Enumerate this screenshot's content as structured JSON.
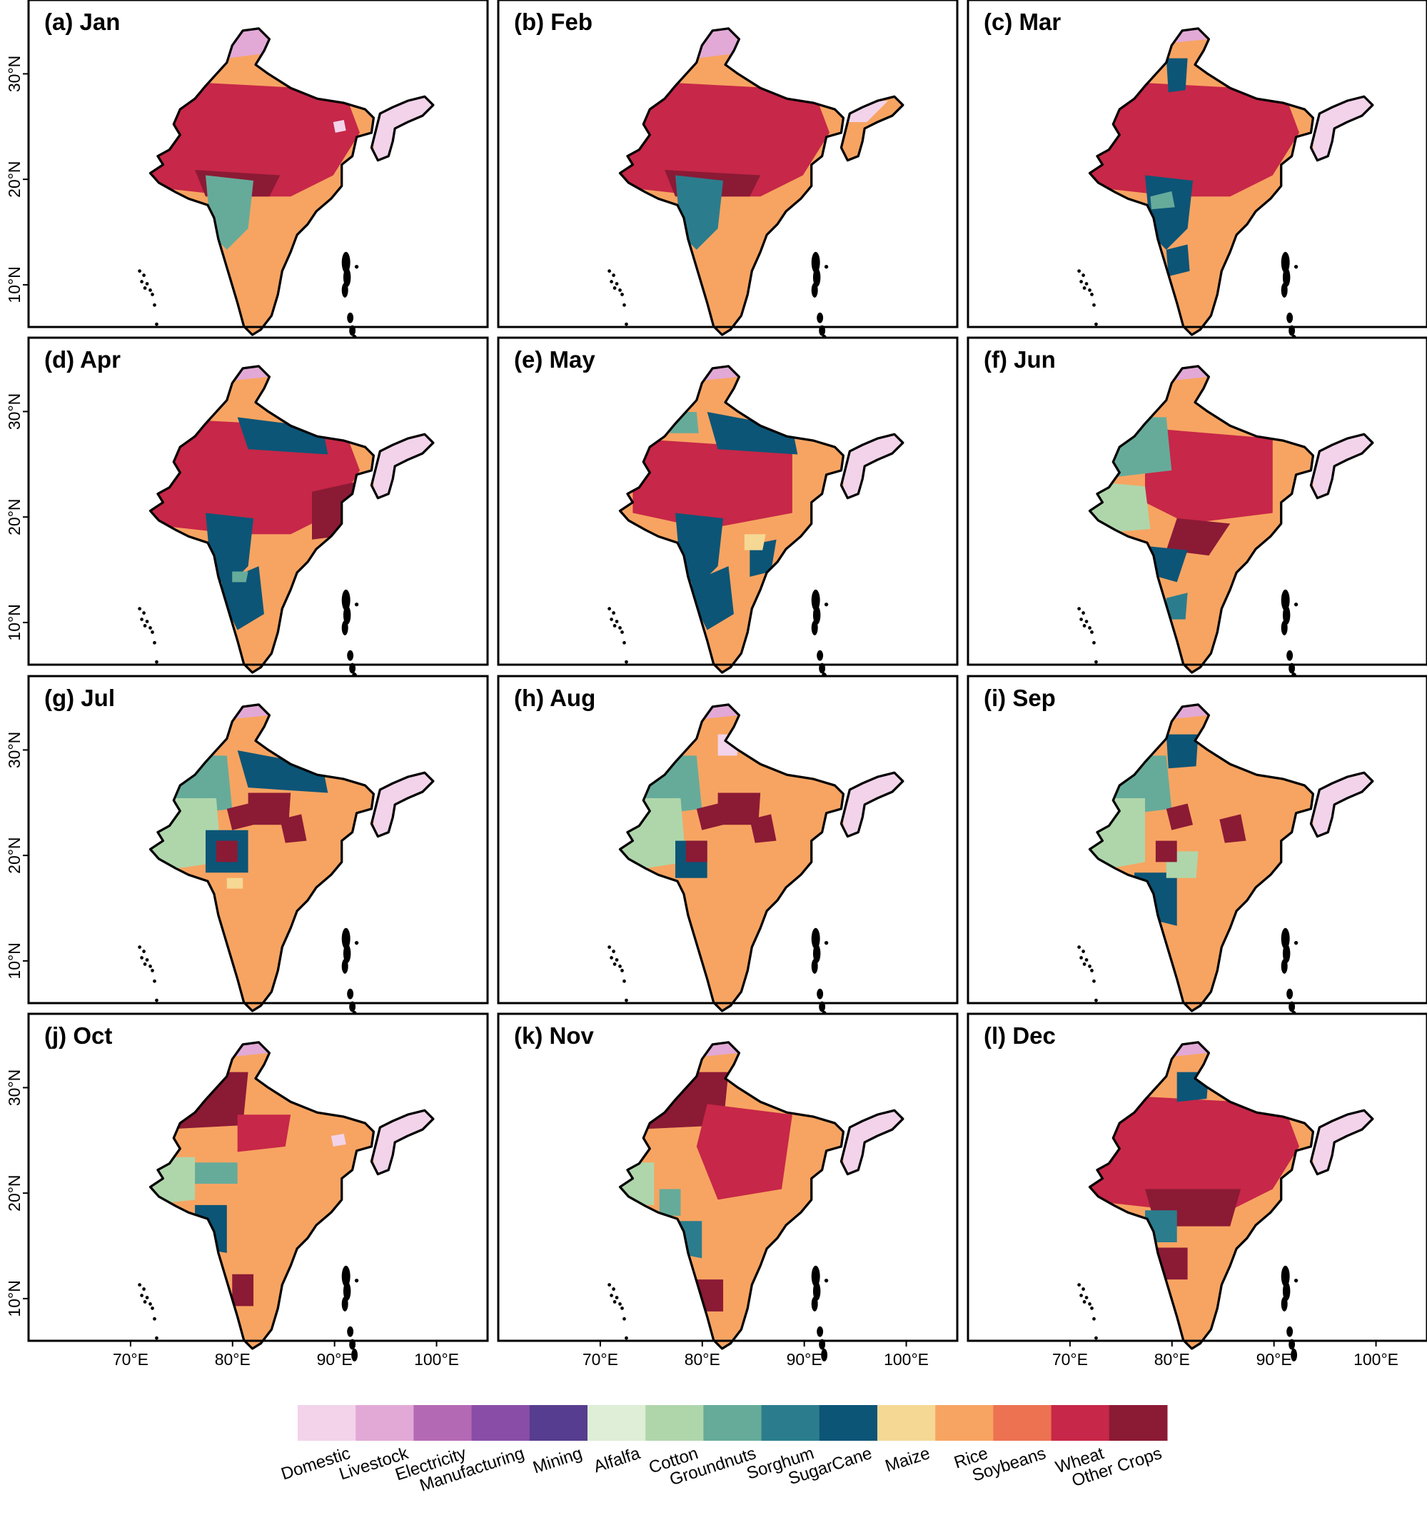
{
  "figure": {
    "panels": [
      {
        "id": "a",
        "label": "(a) Jan",
        "pattern": "jan"
      },
      {
        "id": "b",
        "label": "(b) Feb",
        "pattern": "feb"
      },
      {
        "id": "c",
        "label": "(c) Mar",
        "pattern": "mar"
      },
      {
        "id": "d",
        "label": "(d) Apr",
        "pattern": "apr"
      },
      {
        "id": "e",
        "label": "(e) May",
        "pattern": "may"
      },
      {
        "id": "f",
        "label": "(f) Jun",
        "pattern": "jun"
      },
      {
        "id": "g",
        "label": "(g) Jul",
        "pattern": "jul"
      },
      {
        "id": "h",
        "label": "(h) Aug",
        "pattern": "aug"
      },
      {
        "id": "i",
        "label": "(i) Sep",
        "pattern": "sep"
      },
      {
        "id": "j",
        "label": "(j) Oct",
        "pattern": "oct"
      },
      {
        "id": "k",
        "label": "(k) Nov",
        "pattern": "nov"
      },
      {
        "id": "l",
        "label": "(l) Dec",
        "pattern": "dec"
      }
    ],
    "lat_ticks": [
      "30°N",
      "20°N",
      "10°N"
    ],
    "lon_ticks": [
      "70°E",
      "80°E",
      "90°E",
      "100°E"
    ],
    "extent": {
      "lon": [
        60,
        105
      ],
      "lat": [
        6,
        37
      ]
    },
    "legend": [
      {
        "name": "Domestic",
        "color": "#f2d3ea"
      },
      {
        "name": "Livestock",
        "color": "#e2a9d6"
      },
      {
        "name": "Electricity",
        "color": "#b469b4"
      },
      {
        "name": "Manufacturing",
        "color": "#8a4da7"
      },
      {
        "name": "Mining",
        "color": "#573d8f"
      },
      {
        "name": "Alfalfa",
        "color": "#deeed7"
      },
      {
        "name": "Cotton",
        "color": "#afd6ab"
      },
      {
        "name": "Groundnuts",
        "color": "#66ab9a"
      },
      {
        "name": "Sorghum",
        "color": "#2b7d8d"
      },
      {
        "name": "SugarCane",
        "color": "#0c5577"
      },
      {
        "name": "Maize",
        "color": "#f5d894"
      },
      {
        "name": "Rice",
        "color": "#f7a462"
      },
      {
        "name": "Soybeans",
        "color": "#ec7252"
      },
      {
        "name": "Wheat",
        "color": "#c72748"
      },
      {
        "name": "Other Crops",
        "color": "#8b1a35"
      }
    ]
  }
}
